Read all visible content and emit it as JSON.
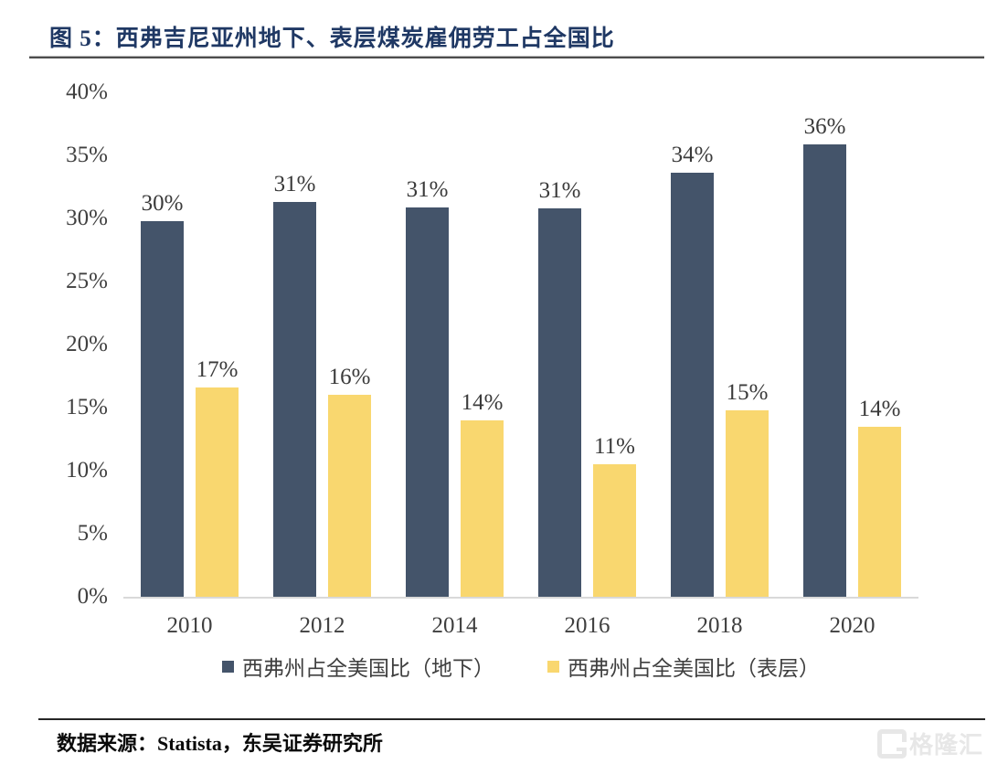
{
  "page": {
    "title": "图 5：西弗吉尼亚州地下、表层煤炭雇佣劳工占全国比",
    "source": "数据来源：Statista，东吴证券研究所",
    "watermark": "格隆汇"
  },
  "colors": {
    "title_navy": "#1F3864",
    "bar_underground": "#44546A",
    "bar_surface": "#F9D76F",
    "axis_line": "#D9D9D9",
    "tick_text": "#3F3F3F"
  },
  "chart_data": {
    "type": "bar",
    "title": "西弗吉尼亚州地下、表层煤炭雇佣劳工占全国比",
    "categories": [
      "2010",
      "2012",
      "2014",
      "2016",
      "2018",
      "2020"
    ],
    "y_ticks": [
      "0%",
      "5%",
      "10%",
      "15%",
      "20%",
      "25%",
      "30%",
      "35%",
      "40%"
    ],
    "ylim": [
      0,
      40
    ],
    "grid": false,
    "legend_position": "bottom",
    "series": [
      {
        "name": "西弗州占全美国比（地下）",
        "color": "#44546A",
        "values": [
          30,
          31,
          31,
          31,
          34,
          36
        ],
        "labels": [
          "30%",
          "31%",
          "31%",
          "31%",
          "34%",
          "36%"
        ],
        "bar_heights_pct": [
          29.8,
          31.3,
          30.9,
          30.8,
          33.6,
          35.9
        ]
      },
      {
        "name": "西弗州占全美国比（表层）",
        "color": "#F9D76F",
        "values": [
          17,
          16,
          14,
          11,
          15,
          14
        ],
        "labels": [
          "17%",
          "16%",
          "14%",
          "11%",
          "15%",
          "14%"
        ],
        "bar_heights_pct": [
          16.6,
          16.0,
          14.0,
          10.5,
          14.8,
          13.5
        ]
      }
    ]
  }
}
